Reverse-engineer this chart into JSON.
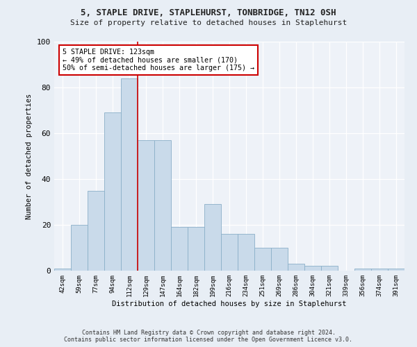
{
  "title": "5, STAPLE DRIVE, STAPLEHURST, TONBRIDGE, TN12 0SH",
  "subtitle": "Size of property relative to detached houses in Staplehurst",
  "xlabel": "Distribution of detached houses by size in Staplehurst",
  "ylabel": "Number of detached properties",
  "bar_labels": [
    "42sqm",
    "59sqm",
    "77sqm",
    "94sqm",
    "112sqm",
    "129sqm",
    "147sqm",
    "164sqm",
    "182sqm",
    "199sqm",
    "216sqm",
    "234sqm",
    "251sqm",
    "269sqm",
    "286sqm",
    "304sqm",
    "321sqm",
    "339sqm",
    "356sqm",
    "374sqm",
    "391sqm"
  ],
  "bar_heights": [
    1,
    20,
    35,
    69,
    84,
    57,
    57,
    19,
    19,
    29,
    16,
    16,
    10,
    10,
    3,
    2,
    2,
    0,
    1,
    1,
    1
  ],
  "bar_color": "#c9daea",
  "bar_edge_color": "#8aafc8",
  "vline_x": 4.5,
  "vline_color": "#cc0000",
  "annotation_text": "5 STAPLE DRIVE: 123sqm\n← 49% of detached houses are smaller (170)\n50% of semi-detached houses are larger (175) →",
  "annotation_box_facecolor": "#ffffff",
  "annotation_box_edgecolor": "#cc0000",
  "footer1": "Contains HM Land Registry data © Crown copyright and database right 2024.",
  "footer2": "Contains public sector information licensed under the Open Government Licence v3.0.",
  "ylim": [
    0,
    100
  ],
  "yticks": [
    0,
    20,
    40,
    60,
    80,
    100
  ],
  "bg_color": "#e8eef5",
  "plot_bg_color": "#eef2f8"
}
